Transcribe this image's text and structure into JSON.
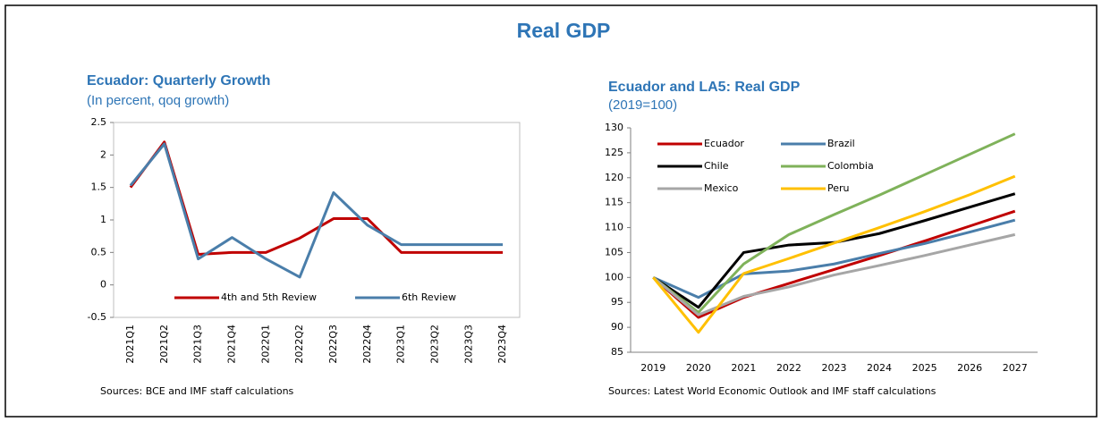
{
  "title": "Real GDP",
  "chart_data": [
    {
      "type": "line",
      "title": "Ecuador: Quarterly Growth",
      "subtitle": "(In percent, qoq growth)",
      "source": "Sources: BCE and IMF staff calculations",
      "categories": [
        "2021Q1",
        "2021Q2",
        "2021Q3",
        "2021Q4",
        "2022Q1",
        "2022Q2",
        "2022Q3",
        "2022Q4",
        "2023Q1",
        "2023Q2",
        "2023Q3",
        "2023Q4"
      ],
      "series": [
        {
          "name": "4th and 5th Review",
          "color": "#c00000",
          "values": [
            1.5,
            2.2,
            0.47,
            0.5,
            0.5,
            0.72,
            1.02,
            1.02,
            0.5,
            0.5,
            0.5,
            0.5
          ]
        },
        {
          "name": "6th Review",
          "color": "#4a7eaa",
          "values": [
            1.53,
            2.17,
            0.4,
            0.73,
            0.4,
            0.12,
            1.42,
            0.92,
            0.62,
            0.62,
            0.62,
            0.62
          ]
        }
      ],
      "ylim": [
        -0.5,
        2.5
      ],
      "yticks": [
        -0.5,
        0,
        0.5,
        1,
        1.5,
        2,
        2.5
      ],
      "legend": "lower center"
    },
    {
      "type": "line",
      "title": "Ecuador and LA5: Real GDP",
      "subtitle": "(2019=100)",
      "source": "Sources: Latest World Economic Outlook and IMF staff calculations",
      "categories": [
        "2019",
        "2020",
        "2021",
        "2022",
        "2023",
        "2024",
        "2025",
        "2026",
        "2027"
      ],
      "series": [
        {
          "name": "Ecuador",
          "color": "#c00000",
          "values": [
            100,
            92,
            96,
            98.8,
            101.6,
            104.4,
            107.3,
            110.3,
            113.3
          ]
        },
        {
          "name": "Brazil",
          "color": "#4a7eaa",
          "values": [
            100,
            96,
            100.7,
            101.3,
            102.7,
            104.8,
            106.8,
            109.1,
            111.5
          ]
        },
        {
          "name": "Chile",
          "color": "#000000",
          "values": [
            100,
            94,
            105,
            106.5,
            107,
            108.8,
            111.4,
            114.1,
            116.8
          ]
        },
        {
          "name": "Colombia",
          "color": "#7fb25a",
          "values": [
            100,
            93,
            102.7,
            108.6,
            112.6,
            116.5,
            120.6,
            124.7,
            128.8
          ]
        },
        {
          "name": "Mexico",
          "color": "#a6a6a6",
          "values": [
            100,
            92.5,
            96.2,
            98.1,
            100.5,
            102.4,
            104.4,
            106.5,
            108.6
          ]
        },
        {
          "name": "Peru",
          "color": "#ffc000",
          "values": [
            100,
            89,
            100.8,
            103.8,
            106.9,
            110,
            113.2,
            116.6,
            120.3
          ]
        }
      ],
      "ylim": [
        85,
        130
      ],
      "yticks": [
        85,
        90,
        95,
        100,
        105,
        110,
        115,
        120,
        125,
        130
      ],
      "legend": "upper left"
    }
  ]
}
